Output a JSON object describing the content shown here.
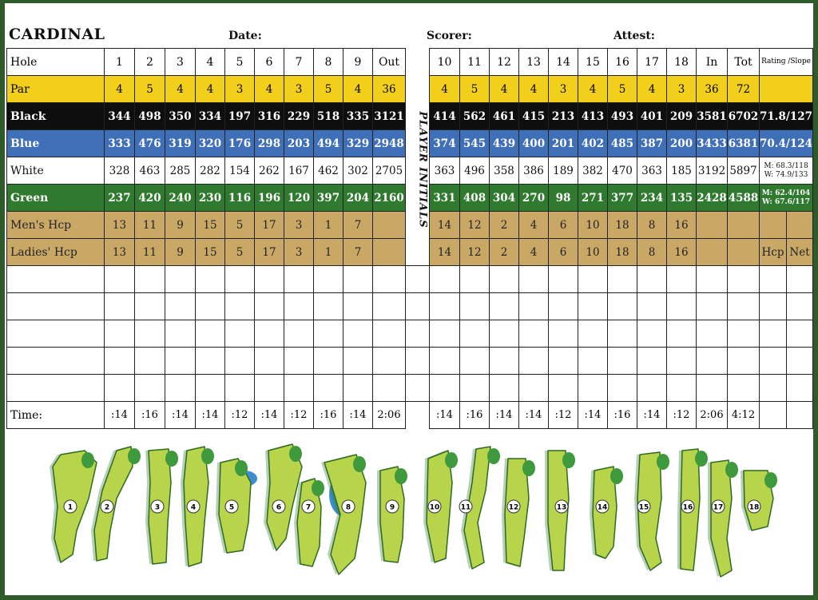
{
  "course_name": "CARDINAL",
  "header": {
    "date_label": "Date:",
    "scorer_label": "Scorer:",
    "attest_label": "Attest:"
  },
  "player_initials_label": "PLAYER INITIALS",
  "rating_slope_label": "Rating /Slope",
  "front_nine": [
    "1",
    "2",
    "3",
    "4",
    "5",
    "6",
    "7",
    "8",
    "9"
  ],
  "back_nine": [
    "10",
    "11",
    "12",
    "13",
    "14",
    "15",
    "16",
    "17",
    "18"
  ],
  "columns": {
    "hole": "Hole",
    "out": "Out",
    "in": "In",
    "tot": "Tot"
  },
  "rows": {
    "par": {
      "label": "Par",
      "front": [
        "4",
        "5",
        "4",
        "4",
        "3",
        "4",
        "3",
        "5",
        "4"
      ],
      "out": "36",
      "back": [
        "4",
        "5",
        "4",
        "4",
        "3",
        "4",
        "5",
        "4",
        "3"
      ],
      "in": "36",
      "tot": "72",
      "rating": ""
    },
    "black": {
      "label": "Black",
      "front": [
        "344",
        "498",
        "350",
        "334",
        "197",
        "316",
        "229",
        "518",
        "335"
      ],
      "out": "3121",
      "back": [
        "414",
        "562",
        "461",
        "415",
        "213",
        "413",
        "493",
        "401",
        "209"
      ],
      "in": "3581",
      "tot": "6702",
      "rating": "71.8/127"
    },
    "blue": {
      "label": "Blue",
      "front": [
        "333",
        "476",
        "319",
        "320",
        "176",
        "298",
        "203",
        "494",
        "329"
      ],
      "out": "2948",
      "back": [
        "374",
        "545",
        "439",
        "400",
        "201",
        "402",
        "485",
        "387",
        "200"
      ],
      "in": "3433",
      "tot": "6381",
      "rating": "70.4/124"
    },
    "white": {
      "label": "White",
      "front": [
        "328",
        "463",
        "285",
        "282",
        "154",
        "262",
        "167",
        "462",
        "302"
      ],
      "out": "2705",
      "back": [
        "363",
        "496",
        "358",
        "386",
        "189",
        "382",
        "470",
        "363",
        "185"
      ],
      "in": "3192",
      "tot": "5897",
      "rating_m": "M: 68.3/118",
      "rating_w": "W: 74.9/133"
    },
    "green": {
      "label": "Green",
      "front": [
        "237",
        "420",
        "240",
        "230",
        "116",
        "196",
        "120",
        "397",
        "204"
      ],
      "out": "2160",
      "back": [
        "331",
        "408",
        "304",
        "270",
        "98",
        "271",
        "377",
        "234",
        "135"
      ],
      "in": "2428",
      "tot": "4588",
      "rating_m": "M: 62.4/104",
      "rating_w": "W: 67.6/117"
    },
    "mens_hcp": {
      "label": "Men's Hcp",
      "front": [
        "13",
        "11",
        "9",
        "15",
        "5",
        "17",
        "3",
        "1",
        "7"
      ],
      "back": [
        "14",
        "12",
        "2",
        "4",
        "6",
        "10",
        "18",
        "8",
        "16"
      ]
    },
    "ladies_hcp": {
      "label": "Ladies' Hcp",
      "front": [
        "13",
        "11",
        "9",
        "15",
        "5",
        "17",
        "3",
        "1",
        "7"
      ],
      "back": [
        "14",
        "12",
        "2",
        "4",
        "6",
        "10",
        "18",
        "8",
        "16"
      ],
      "hcp": "Hcp",
      "net": "Net"
    }
  },
  "time": {
    "label": "Time:",
    "front": [
      ":14",
      ":16",
      ":14",
      ":14",
      ":12",
      ":14",
      ":12",
      ":16",
      ":14"
    ],
    "out": "2:06",
    "back": [
      ":14",
      ":16",
      ":14",
      ":14",
      ":12",
      ":14",
      ":16",
      ":14",
      ":12"
    ],
    "in": "2:06",
    "tot": "4:12"
  },
  "hole_diagrams": [
    "1",
    "2",
    "3",
    "4",
    "5",
    "6",
    "7",
    "8",
    "9",
    "10",
    "11",
    "12",
    "13",
    "14",
    "15",
    "16",
    "17",
    "18"
  ],
  "colors": {
    "par": "#f2cf1a",
    "black": "#0e0e0e",
    "blue": "#3f6fb6",
    "green": "#2f7a2e",
    "hcp": "#c9a866",
    "fairway": "#b8d44a",
    "rough": "#2d7a34"
  }
}
